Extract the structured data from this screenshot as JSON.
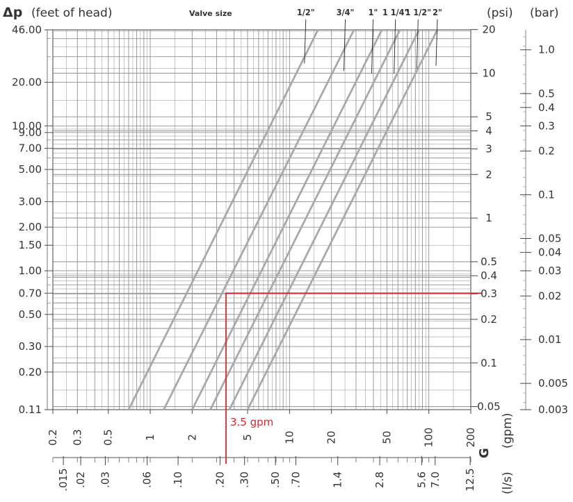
{
  "chart_data": {
    "type": "line",
    "x_scale": "log",
    "y_scale": "log",
    "x_unit_title": "(gpm)",
    "x_symbol": "G",
    "x_lower_unit_title": "(l/s)",
    "y_symbol": "Δp",
    "y_unit_title": "(feet of head)",
    "y_right1_title": "(psi)",
    "y_right2_title": "(bar)",
    "valve_size_title": "Valve size",
    "xlim": [
      0.2,
      200
    ],
    "ylim": [
      0.11,
      46
    ],
    "grid": true,
    "x_ticks": [
      {
        "value": 0.2,
        "label": "0.2"
      },
      {
        "value": 0.3,
        "label": "0.3"
      },
      {
        "value": 0.5,
        "label": "0.5"
      },
      {
        "value": 1,
        "label": "1"
      },
      {
        "value": 2,
        "label": "2"
      },
      {
        "value": 5,
        "label": "5"
      },
      {
        "value": 10,
        "label": "10"
      },
      {
        "value": 20,
        "label": "20"
      },
      {
        "value": 50,
        "label": "50"
      },
      {
        "value": 100,
        "label": "100"
      },
      {
        "value": 200,
        "label": "200"
      }
    ],
    "x_lower_ticks": [
      {
        "gpm": 0.238,
        "label": ".015"
      },
      {
        "gpm": 0.317,
        "label": ".02"
      },
      {
        "gpm": 0.476,
        "label": ".03"
      },
      {
        "gpm": 0.951,
        "label": ".06"
      },
      {
        "gpm": 1.585,
        "label": ".10"
      },
      {
        "gpm": 3.17,
        "label": ".20"
      },
      {
        "gpm": 4.755,
        "label": ".30"
      },
      {
        "gpm": 7.925,
        "label": ".50"
      },
      {
        "gpm": 11.1,
        "label": ".70"
      },
      {
        "gpm": 22.2,
        "label": "1.4"
      },
      {
        "gpm": 44.4,
        "label": "2.8"
      },
      {
        "gpm": 88.8,
        "label": "5.6"
      },
      {
        "gpm": 111,
        "label": "7.0"
      },
      {
        "gpm": 198,
        "label": "12.5"
      }
    ],
    "y_ticks": [
      {
        "value": 46,
        "label": "46.00"
      },
      {
        "value": 20,
        "label": "20.00"
      },
      {
        "value": 10,
        "label": "10.00"
      },
      {
        "value": 9,
        "label": "9.00"
      },
      {
        "value": 7,
        "label": "7.00"
      },
      {
        "value": 5,
        "label": "5.00"
      },
      {
        "value": 3,
        "label": "3.00"
      },
      {
        "value": 2,
        "label": "2.00"
      },
      {
        "value": 1.5,
        "label": "1.50"
      },
      {
        "value": 1,
        "label": "1.00"
      },
      {
        "value": 0.7,
        "label": "0.70"
      },
      {
        "value": 0.5,
        "label": "0.50"
      },
      {
        "value": 0.3,
        "label": "0.30"
      },
      {
        "value": 0.2,
        "label": "0.20"
      },
      {
        "value": 0.11,
        "label": "0.11"
      }
    ],
    "psi_ticks": [
      {
        "ft": 46.2,
        "label": "20"
      },
      {
        "ft": 23.1,
        "label": "10"
      },
      {
        "ft": 11.55,
        "label": "5"
      },
      {
        "ft": 9.24,
        "label": "4"
      },
      {
        "ft": 6.93,
        "label": "3"
      },
      {
        "ft": 4.62,
        "label": "2"
      },
      {
        "ft": 2.31,
        "label": "1"
      },
      {
        "ft": 1.155,
        "label": "0.5"
      },
      {
        "ft": 0.924,
        "label": "0.4"
      },
      {
        "ft": 0.693,
        "label": "0.3"
      },
      {
        "ft": 0.462,
        "label": "0.2"
      },
      {
        "ft": 0.231,
        "label": "0.1"
      },
      {
        "ft": 0.1155,
        "label": "0.05"
      }
    ],
    "bar_ticks": [
      {
        "ft": 33.5,
        "label": "1.0"
      },
      {
        "ft": 16.7,
        "label": "0.5"
      },
      {
        "ft": 13.4,
        "label": "0.4"
      },
      {
        "ft": 10.0,
        "label": "0.3"
      },
      {
        "ft": 6.7,
        "label": "0.2"
      },
      {
        "ft": 3.35,
        "label": "0.1"
      },
      {
        "ft": 1.67,
        "label": "0.05"
      },
      {
        "ft": 1.34,
        "label": "0.04"
      },
      {
        "ft": 1.0,
        "label": "0.03"
      },
      {
        "ft": 0.67,
        "label": "0.02"
      },
      {
        "ft": 0.335,
        "label": "0.01"
      },
      {
        "ft": 0.167,
        "label": "0.005"
      },
      {
        "ft": 0.11,
        "label": "0.003"
      }
    ],
    "series": [
      {
        "name": "1/2\"",
        "points": [
          [
            0.7,
            0.11
          ],
          [
            16,
            46
          ]
        ],
        "label_at": [
          12.5,
          27
        ]
      },
      {
        "name": "3/4\"",
        "points": [
          [
            1.25,
            0.11
          ],
          [
            29,
            46
          ]
        ],
        "label_at": [
          24,
          24
        ]
      },
      {
        "name": "1\"",
        "points": [
          [
            2.0,
            0.11
          ],
          [
            46,
            46
          ]
        ],
        "label_at": [
          38,
          23
        ]
      },
      {
        "name": "1 1/4\"",
        "points": [
          [
            2.7,
            0.11
          ],
          [
            62,
            46
          ]
        ],
        "label_at": [
          55,
          23
        ]
      },
      {
        "name": "1 1/2\"",
        "points": [
          [
            3.7,
            0.11
          ],
          [
            85,
            46
          ]
        ],
        "label_at": [
          80,
          24
        ]
      },
      {
        "name": "2\"",
        "points": [
          [
            5.0,
            0.11
          ],
          [
            115,
            46
          ]
        ],
        "label_at": [
          110,
          26
        ]
      }
    ],
    "annotation": {
      "text": "3.5 gpm",
      "x": 3.5,
      "y": 0.7,
      "psi": 0.3,
      "bar": 0.02,
      "color": "#e0262d"
    },
    "colors": {
      "grid": "#8f8f8f",
      "series": "#a9a9a9",
      "marker": "#e0262d",
      "text": "#333333"
    }
  }
}
